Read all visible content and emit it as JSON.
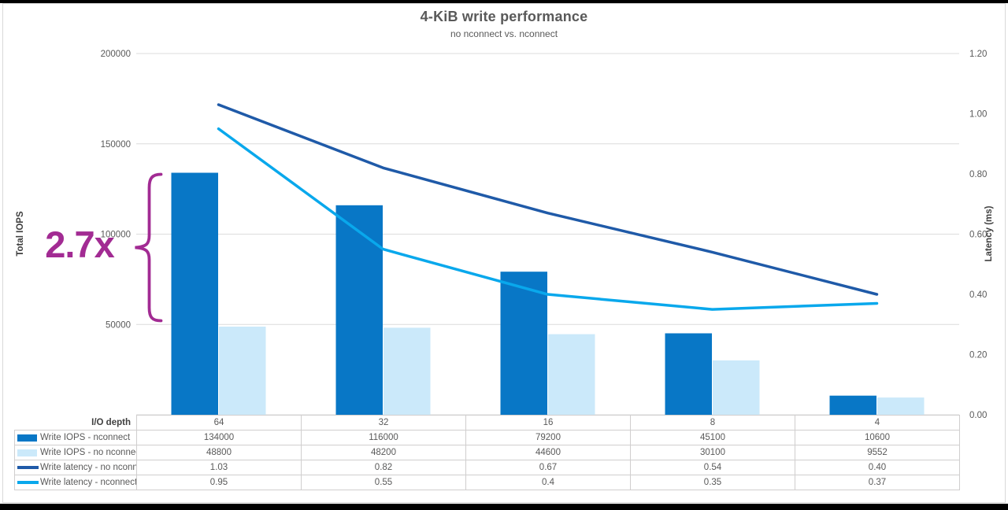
{
  "chart_data": {
    "type": "combo",
    "title": "4-KiB write performance",
    "subtitle": "no nconnect vs. nconnect",
    "category_label": "I/O depth",
    "categories": [
      "64",
      "32",
      "16",
      "8",
      "4"
    ],
    "series": [
      {
        "name": "Write IOPS - nconnect",
        "type": "bar",
        "axis": "left",
        "color": "#0877C6",
        "values": [
          134000,
          116000,
          79200,
          45100,
          10600
        ],
        "display": [
          "134000",
          "116000",
          "79200",
          "45100",
          "10600"
        ]
      },
      {
        "name": "Write IOPS - no nconnect",
        "type": "bar",
        "axis": "left",
        "color": "#CBE9FA",
        "values": [
          48800,
          48200,
          44600,
          30100,
          9552
        ],
        "display": [
          "48800",
          "48200",
          "44600",
          "30100",
          "9552"
        ]
      },
      {
        "name": "Write latency - no nconnect",
        "type": "line",
        "axis": "right",
        "color": "#1F5AA8",
        "values": [
          1.03,
          0.82,
          0.67,
          0.54,
          0.4
        ],
        "display": [
          "1.03",
          "0.82",
          "0.67",
          "0.54",
          "0.40"
        ]
      },
      {
        "name": "Write latency - nconnect",
        "type": "line",
        "axis": "right",
        "color": "#09A8EC",
        "values": [
          0.95,
          0.55,
          0.4,
          0.35,
          0.37
        ],
        "display": [
          "0.95",
          "0.55",
          "0.4",
          "0.35",
          "0.37"
        ]
      }
    ],
    "left_axis": {
      "label": "Total IOPS",
      "min": 0,
      "max": 200000,
      "ticks": [
        "200000",
        "150000",
        "100000",
        "50000"
      ]
    },
    "right_axis": {
      "label": "Latency (ms)",
      "min": 0,
      "max": 1.2,
      "ticks": [
        "1.20",
        "1.00",
        "0.80",
        "0.60",
        "0.40",
        "0.20",
        "0.00"
      ]
    },
    "annotation": {
      "text": "2.7x",
      "color": "#A22B93"
    },
    "grid": "horizontal-major-only",
    "legend_position": "table-left-column",
    "colors": {
      "gridline": "#DCDCDC",
      "axis_text": "#595959",
      "table_border": "#D0CECE"
    }
  }
}
